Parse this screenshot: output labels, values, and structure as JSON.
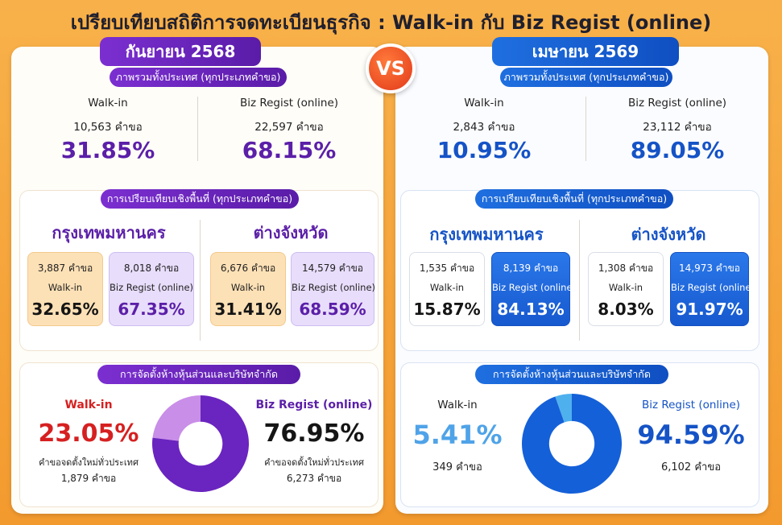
{
  "title": "เปรียบเทียบสถิติการจดทะเบียนธุรกิจ : Walk-in กับ Biz Regist (online)",
  "vs": "VS",
  "colors": {
    "purple": "#6a24bf",
    "lavender": "#c98ee8",
    "blue": "#1460d8",
    "lightblue": "#4fb0ee"
  },
  "left": {
    "period": "กันยายน 2568",
    "overview": {
      "label": "ภาพรวมทั้งประเทศ (ทุกประเภทคำขอ)",
      "walkin": {
        "name": "Walk-in",
        "count": "10,563 คำขอ",
        "pct": "31.85%"
      },
      "online": {
        "name": "Biz Regist (online)",
        "count": "22,597 คำขอ",
        "pct": "68.15%"
      }
    },
    "area": {
      "label": "การเปรียบเทียบเชิงพื้นที่ (ทุกประเภทคำขอ)",
      "bangkok": {
        "name": "กรุงเทพมหานคร",
        "walkin": {
          "count": "3,887 คำขอ",
          "name": "Walk-in",
          "pct": "32.65%"
        },
        "online": {
          "count": "8,018 คำขอ",
          "name": "Biz Regist (online)",
          "pct": "67.35%"
        }
      },
      "provinces": {
        "name": "ต่างจังหวัด",
        "walkin": {
          "count": "6,676 คำขอ",
          "name": "Walk-in",
          "pct": "31.41%"
        },
        "online": {
          "count": "14,579 คำขอ",
          "name": "Biz Regist (online)",
          "pct": "68.59%"
        }
      }
    },
    "company": {
      "label": "การจัดตั้งห้างหุ้นส่วนและบริษัทจำกัด",
      "walkin": {
        "name": "Walk-in",
        "pct": "23.05%",
        "desc": "คำขอจดตั้งใหม่ทั่วประเทศ",
        "count": "1,879 คำขอ",
        "value": 23.05
      },
      "online": {
        "name": "Biz Regist (online)",
        "pct": "76.95%",
        "desc": "คำขอจดตั้งใหม่ทั่วประเทศ",
        "count": "6,273 คำขอ",
        "value": 76.95
      }
    }
  },
  "right": {
    "period": "เมษายน 2569",
    "overview": {
      "label": "ภาพรวมทั้งประเทศ (ทุกประเภทคำขอ)",
      "walkin": {
        "name": "Walk-in",
        "count": "2,843 คำขอ",
        "pct": "10.95%"
      },
      "online": {
        "name": "Biz Regist (online)",
        "count": "23,112 คำขอ",
        "pct": "89.05%"
      }
    },
    "area": {
      "label": "การเปรียบเทียบเชิงพื้นที่ (ทุกประเภทคำขอ)",
      "bangkok": {
        "name": "กรุงเทพมหานคร",
        "walkin": {
          "count": "1,535 คำขอ",
          "name": "Walk-in",
          "pct": "15.87%"
        },
        "online": {
          "count": "8,139 คำขอ",
          "name": "Biz Regist (online)",
          "pct": "84.13%"
        }
      },
      "provinces": {
        "name": "ต่างจังหวัด",
        "walkin": {
          "count": "1,308 คำขอ",
          "name": "Walk-in",
          "pct": "8.03%"
        },
        "online": {
          "count": "14,973 คำขอ",
          "name": "Biz Regist (online)",
          "pct": "91.97%"
        }
      }
    },
    "company": {
      "label": "การจัดตั้งห้างหุ้นส่วนและบริษัทจำกัด",
      "walkin": {
        "name": "Walk-in",
        "pct": "5.41%",
        "count": "349 คำขอ",
        "value": 5.41
      },
      "online": {
        "name": "Biz Regist (online)",
        "pct": "94.59%",
        "count": "6,102 คำขอ",
        "value": 94.59
      }
    }
  }
}
